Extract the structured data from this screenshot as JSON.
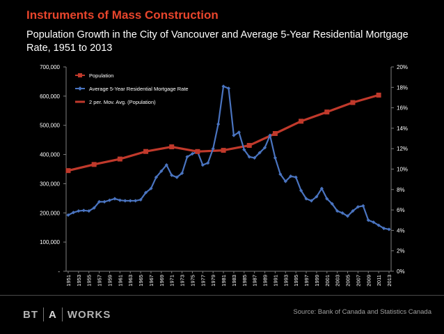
{
  "header": {
    "title": "Instruments of Mass Construction",
    "subtitle": "Population Growth in the City of Vancouver and Average 5-Year Residential Mortgage Rate, 1951 to 2013"
  },
  "footer": {
    "logo_parts": [
      "BT",
      "A",
      "WORKS"
    ],
    "source": "Source: Bank of Canada and Statistics Canada"
  },
  "colors": {
    "population": "#c0392b",
    "mortgage": "#4a74c0",
    "background": "#000000",
    "title": "#e8452c"
  },
  "chart_data": {
    "type": "line",
    "title": "Population Growth in the City of Vancouver and Average 5-Year Residential Mortgage Rate, 1951 to 2013",
    "x": [
      1951,
      1952,
      1953,
      1954,
      1955,
      1956,
      1957,
      1958,
      1959,
      1960,
      1961,
      1962,
      1963,
      1964,
      1965,
      1966,
      1967,
      1968,
      1969,
      1970,
      1971,
      1972,
      1973,
      1974,
      1975,
      1976,
      1977,
      1978,
      1979,
      1980,
      1981,
      1982,
      1983,
      1984,
      1985,
      1986,
      1987,
      1988,
      1989,
      1990,
      1991,
      1992,
      1993,
      1994,
      1995,
      1996,
      1997,
      1998,
      1999,
      2000,
      2001,
      2002,
      2003,
      2004,
      2005,
      2006,
      2007,
      2008,
      2009,
      2010,
      2011,
      2012,
      2013
    ],
    "x_tick_labels": [
      "1951",
      "1953",
      "1955",
      "1957",
      "1959",
      "1961",
      "1963",
      "1965",
      "1967",
      "1969",
      "1971",
      "1973",
      "1975",
      "1977",
      "1979",
      "1981",
      "1983",
      "1985",
      "1987",
      "1989",
      "1991",
      "1993",
      "1995",
      "1997",
      "1999",
      "2001",
      "2003",
      "2005",
      "2007",
      "2009",
      "2011",
      "2013"
    ],
    "y_left": {
      "min": 0,
      "max": 700000,
      "ticks": [
        "-",
        "100,000",
        "200,000",
        "300,000",
        "400,000",
        "500,000",
        "600,000",
        "700,000"
      ]
    },
    "y_right": {
      "min": 0,
      "max": 20,
      "ticks": [
        "0%",
        "2%",
        "4%",
        "6%",
        "8%",
        "10%",
        "12%",
        "14%",
        "16%",
        "18%",
        "20%"
      ]
    },
    "legend": {
      "placement": "top-left",
      "entries": [
        "Population",
        "Average 5-Year Residential Mortgage Rate",
        "2 per. Mov. Avg. (Population)"
      ]
    },
    "series": [
      {
        "name": "Population",
        "axis": "left",
        "x": [
          1951,
          1956,
          1961,
          1966,
          1971,
          1976,
          1981,
          1986,
          1991,
          1996,
          2001,
          2006,
          2011
        ],
        "values": [
          344833,
          365844,
          384522,
          410375,
          426256,
          410188,
          414281,
          431147,
          471844,
          514008,
          545671,
          578041,
          603502
        ]
      },
      {
        "name": "Average 5-Year Residential Mortgage Rate",
        "axis": "right",
        "values": [
          5.5,
          5.75,
          5.9,
          5.95,
          5.9,
          6.2,
          6.8,
          6.8,
          6.95,
          7.1,
          6.95,
          6.9,
          6.9,
          6.9,
          7.0,
          7.7,
          8.1,
          9.2,
          9.8,
          10.4,
          9.4,
          9.2,
          9.6,
          11.2,
          11.5,
          11.7,
          10.4,
          10.6,
          12.0,
          14.4,
          18.1,
          17.9,
          13.3,
          13.6,
          11.9,
          11.2,
          11.1,
          11.6,
          12.1,
          13.3,
          11.1,
          9.5,
          8.8,
          9.3,
          9.2,
          7.9,
          7.1,
          6.9,
          7.3,
          8.1,
          7.1,
          6.6,
          5.9,
          5.7,
          5.4,
          5.9,
          6.3,
          6.4,
          5.0,
          4.8,
          4.5,
          4.2,
          4.1
        ]
      },
      {
        "name": "2 per. Mov. Avg. (Population)",
        "axis": "left",
        "x": [
          1956,
          1961,
          1966,
          1971,
          1976,
          1981,
          1986,
          1991,
          1996,
          2001,
          2006,
          2011
        ],
        "values": [
          355339,
          375183,
          397449,
          418316,
          418222,
          412235,
          422714,
          451496,
          492926,
          529840,
          561856,
          590772
        ]
      }
    ]
  }
}
